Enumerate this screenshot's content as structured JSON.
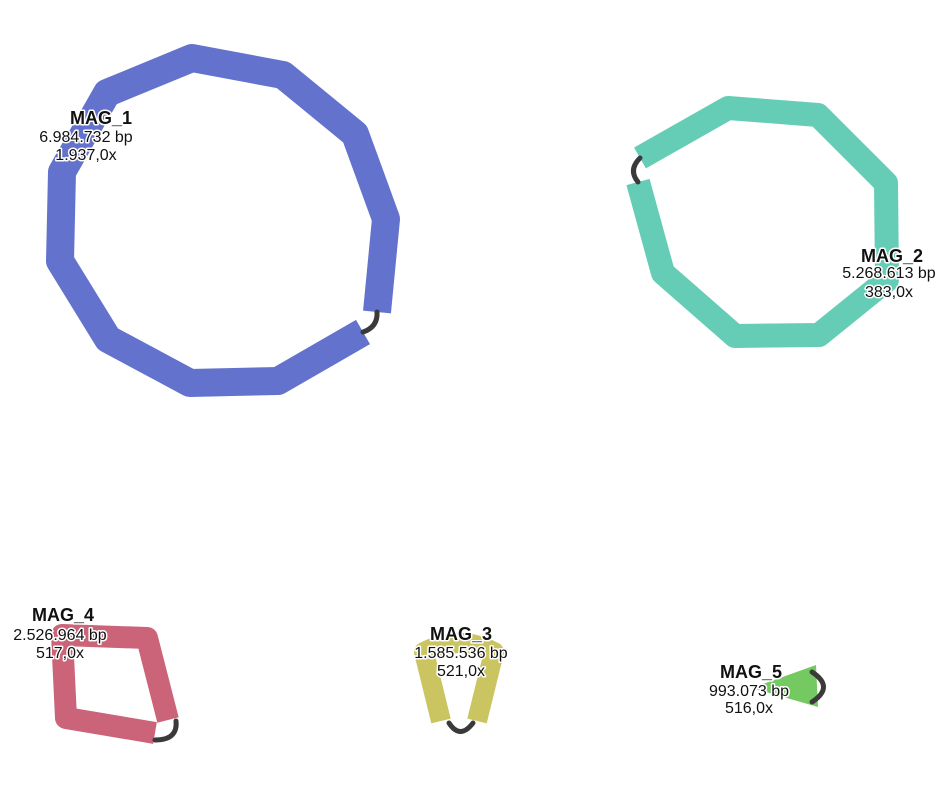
{
  "mags": [
    {
      "name": "MAG_1",
      "length": "6.984.732 bp",
      "depth": "1.937,0x",
      "color": "#6373cd"
    },
    {
      "name": "MAG_2",
      "length": "5.268.613 bp",
      "depth": "383,0x",
      "color": "#65cdb6"
    },
    {
      "name": "MAG_3",
      "length": "1.585.536 bp",
      "depth": "521,0x",
      "color": "#cbc561"
    },
    {
      "name": "MAG_4",
      "length": "2.526.964 bp",
      "depth": "517,0x",
      "color": "#cb6479"
    },
    {
      "name": "MAG_5",
      "length": "993.073 bp",
      "depth": "516,0x",
      "color": "#74c960"
    }
  ],
  "link_color": "#3a3a3a"
}
